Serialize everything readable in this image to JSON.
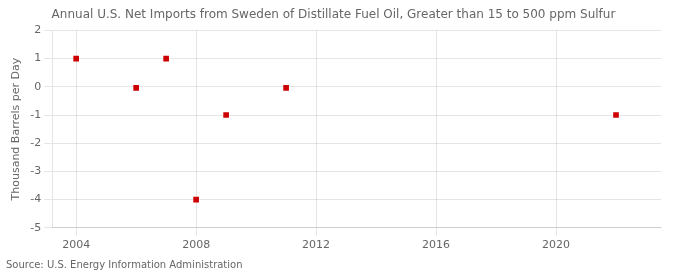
{
  "chart_data": {
    "type": "scatter",
    "title": "Annual U.S. Net Imports from Sweden of Distillate Fuel Oil, Greater than 15 to 500 ppm Sulfur",
    "ylabel": "Thousand Barrels per Day",
    "annotations": [
      "Source: U.S. Energy Information Administration"
    ],
    "x": [
      2004,
      2006,
      2007,
      2008,
      2009,
      2011,
      2022
    ],
    "values": [
      1.0,
      -0.04,
      1.0,
      -4.0,
      -1.0,
      -0.04,
      -1.0
    ],
    "color": "#cc0000",
    "marker": "square",
    "xlim": [
      2003.2,
      2023.5
    ],
    "xticks": [
      2004,
      2008,
      2012,
      2016,
      2020
    ],
    "ylim": [
      -5,
      2
    ],
    "yticks": [
      -5,
      -4,
      -3,
      -2,
      -1,
      0,
      1,
      2
    ],
    "grid": true
  }
}
